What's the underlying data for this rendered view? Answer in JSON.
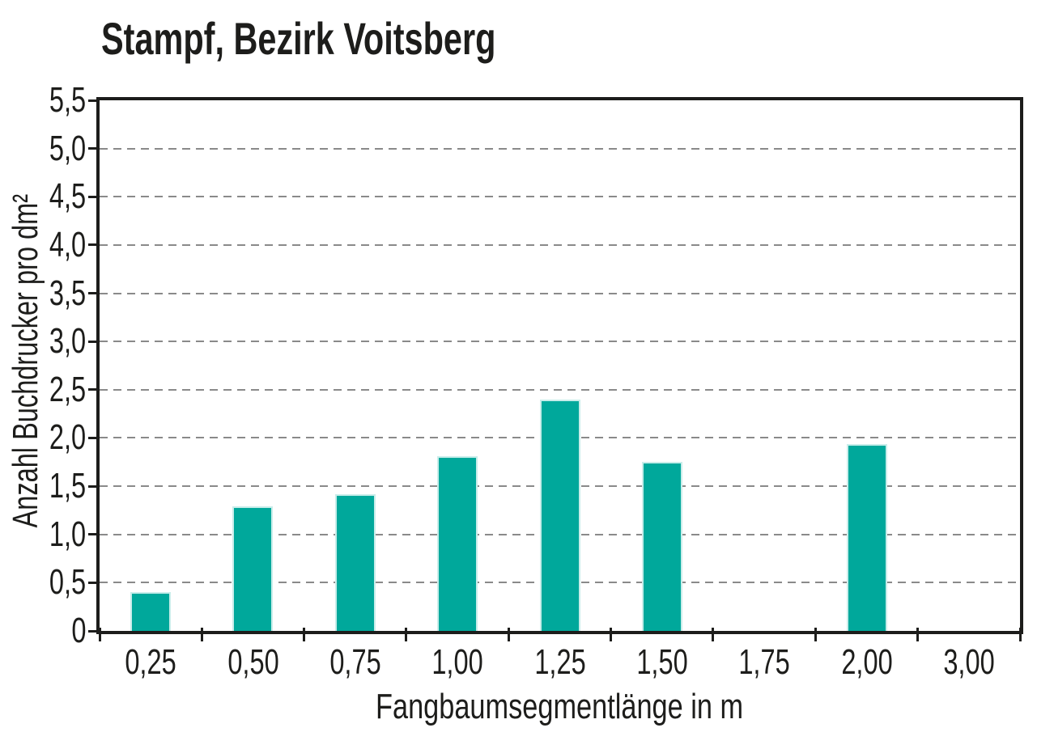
{
  "page": {
    "background": "#ffffff"
  },
  "title": "Stampf, Bezirk Voitsberg",
  "chart_data": {
    "type": "bar",
    "title": "Stampf, Bezirk Voitsberg",
    "categories": [
      "0,25",
      "0,50",
      "0,75",
      "1,00",
      "1,25",
      "1,50",
      "1,75",
      "2,00",
      "3,00"
    ],
    "values": [
      0.4,
      1.29,
      1.42,
      1.81,
      2.4,
      1.75,
      0,
      1.94,
      0
    ],
    "xlabel": "Fangbaumsegmentlänge in m",
    "ylabel": "Anzahl Buchdrucker pro dm²",
    "ylim": [
      0,
      5.5
    ],
    "ytick_step": 0.5,
    "ytick_labels": [
      "0",
      "0,5",
      "1,0",
      "1,5",
      "2,0",
      "2,5",
      "3,0",
      "3,5",
      "4,0",
      "4,5",
      "5,0",
      "5,5"
    ],
    "grid": "horizontal-dashed",
    "legend": "none",
    "bar_color": "#00A89B"
  },
  "colors": {
    "bar_fill": "#00A89B",
    "bar_edge": "#C9EDEA",
    "gridline": "#8A8A8A",
    "axis": "#1D1D1B",
    "text": "#1D1D1B",
    "background": "#FFFFFF"
  }
}
